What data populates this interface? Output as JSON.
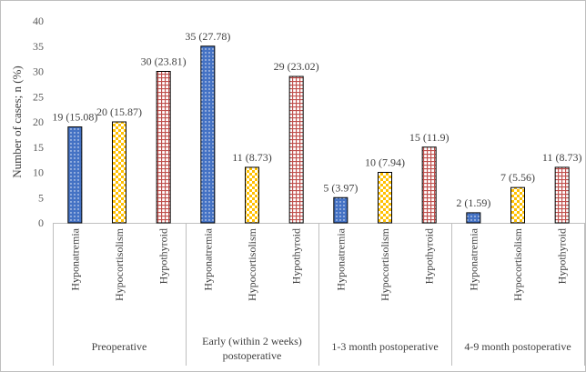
{
  "chart_data": {
    "type": "bar",
    "title": "",
    "ylabel": "Number of cases; n (%)",
    "xlabel": "",
    "ylim": [
      0,
      40
    ],
    "yticks": [
      0,
      5,
      10,
      15,
      20,
      25,
      30,
      35,
      40
    ],
    "groups": [
      {
        "label_lines": [
          "Preoperative"
        ],
        "bars": [
          {
            "category": "Hyponatremia",
            "value": 19,
            "label": "19 (15.08)"
          },
          {
            "category": "Hypocortisolism",
            "value": 20,
            "label": "20 (15.87)"
          },
          {
            "category": "Hypothyroid",
            "value": 30,
            "label": "30 (23.81)"
          }
        ]
      },
      {
        "label_lines": [
          "Early (within 2 weeks)",
          "postoperative"
        ],
        "bars": [
          {
            "category": "Hyponatremia",
            "value": 35,
            "label": "35 (27.78)"
          },
          {
            "category": "Hypocortisolism",
            "value": 11,
            "label": "11 (8.73)"
          },
          {
            "category": "Hypothyroid",
            "value": 29,
            "label": "29 (23.02)"
          }
        ]
      },
      {
        "label_lines": [
          "1-3 month postoperative"
        ],
        "bars": [
          {
            "category": "Hyponatremia",
            "value": 5,
            "label": "5 (3.97)"
          },
          {
            "category": "Hypocortisolism",
            "value": 10,
            "label": "10 (7.94)"
          },
          {
            "category": "Hypothyroid",
            "value": 15,
            "label": "15 (11.9)"
          }
        ]
      },
      {
        "label_lines": [
          "4-9 month postoperative"
        ],
        "bars": [
          {
            "category": "Hyponatremia",
            "value": 2,
            "label": "2 (1.59)"
          },
          {
            "category": "Hypocortisolism",
            "value": 7,
            "label": "7 (5.56)"
          },
          {
            "category": "Hypothyroid",
            "value": 11,
            "label": "11 (8.73)"
          }
        ]
      }
    ],
    "colors": {
      "Hyponatremia": "#4472c4",
      "Hypocortisolism": "#ffc000",
      "Hypothyroid": "#c0504d"
    },
    "grid": false,
    "legend": "none"
  }
}
